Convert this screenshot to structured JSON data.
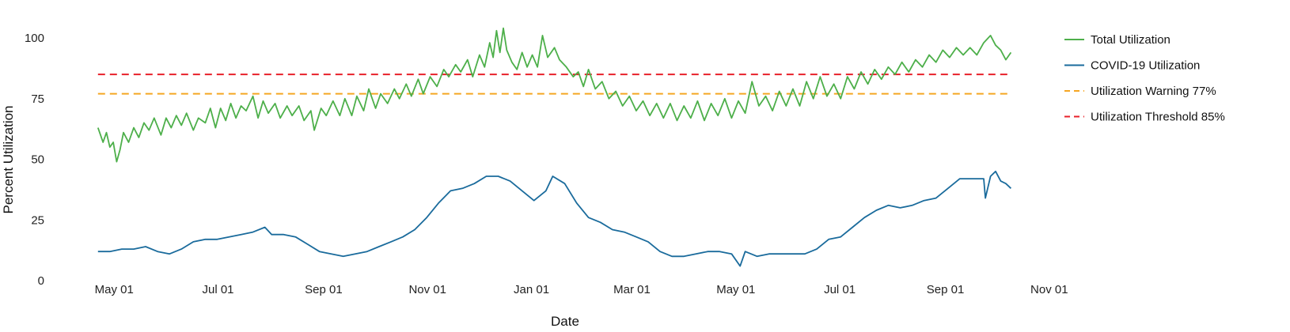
{
  "chart_data": {
    "type": "line",
    "xlabel": "Date",
    "ylabel": "Percent Utilization",
    "ylim": [
      0,
      100
    ],
    "y_ticks": [
      0,
      25,
      50,
      75,
      100
    ],
    "x_range": [
      "2020-04-23",
      "2021-10-20"
    ],
    "x_ticks": [
      {
        "date": "2020-05-01",
        "label": "May 01"
      },
      {
        "date": "2020-07-01",
        "label": "Jul 01"
      },
      {
        "date": "2020-09-01",
        "label": "Sep 01"
      },
      {
        "date": "2020-11-01",
        "label": "Nov 01"
      },
      {
        "date": "2021-01-01",
        "label": "Jan 01"
      },
      {
        "date": "2021-03-01",
        "label": "Mar 01"
      },
      {
        "date": "2021-05-01",
        "label": "May 01"
      },
      {
        "date": "2021-07-01",
        "label": "Jul 01"
      },
      {
        "date": "2021-09-01",
        "label": "Sep 01"
      },
      {
        "date": "2021-11-01",
        "label": "Nov 01"
      }
    ],
    "grid": false,
    "legend_position": "right",
    "series": [
      {
        "name": "Total Utilization",
        "color": "#4daf4a",
        "style": "solid",
        "points": [
          [
            "2020-04-28",
            63
          ],
          [
            "2020-05-01",
            57
          ],
          [
            "2020-05-03",
            61
          ],
          [
            "2020-05-05",
            55
          ],
          [
            "2020-05-07",
            57
          ],
          [
            "2020-05-09",
            49
          ],
          [
            "2020-05-11",
            54
          ],
          [
            "2020-05-13",
            61
          ],
          [
            "2020-05-16",
            57
          ],
          [
            "2020-05-19",
            63
          ],
          [
            "2020-05-22",
            59
          ],
          [
            "2020-05-25",
            65
          ],
          [
            "2020-05-28",
            62
          ],
          [
            "2020-05-31",
            67
          ],
          [
            "2020-06-04",
            60
          ],
          [
            "2020-06-07",
            67
          ],
          [
            "2020-06-10",
            63
          ],
          [
            "2020-06-13",
            68
          ],
          [
            "2020-06-16",
            64
          ],
          [
            "2020-06-19",
            69
          ],
          [
            "2020-06-23",
            62
          ],
          [
            "2020-06-26",
            67
          ],
          [
            "2020-06-30",
            65
          ],
          [
            "2020-07-03",
            71
          ],
          [
            "2020-07-06",
            63
          ],
          [
            "2020-07-09",
            71
          ],
          [
            "2020-07-12",
            66
          ],
          [
            "2020-07-15",
            73
          ],
          [
            "2020-07-18",
            67
          ],
          [
            "2020-07-21",
            72
          ],
          [
            "2020-07-24",
            70
          ],
          [
            "2020-07-28",
            76
          ],
          [
            "2020-07-31",
            67
          ],
          [
            "2020-08-03",
            74
          ],
          [
            "2020-08-06",
            69
          ],
          [
            "2020-08-10",
            73
          ],
          [
            "2020-08-13",
            67
          ],
          [
            "2020-08-17",
            72
          ],
          [
            "2020-08-20",
            68
          ],
          [
            "2020-08-24",
            72
          ],
          [
            "2020-08-27",
            66
          ],
          [
            "2020-08-31",
            70
          ],
          [
            "2020-09-02",
            62
          ],
          [
            "2020-09-06",
            71
          ],
          [
            "2020-09-09",
            68
          ],
          [
            "2020-09-13",
            74
          ],
          [
            "2020-09-17",
            68
          ],
          [
            "2020-09-20",
            75
          ],
          [
            "2020-09-24",
            68
          ],
          [
            "2020-09-27",
            76
          ],
          [
            "2020-10-01",
            70
          ],
          [
            "2020-10-04",
            79
          ],
          [
            "2020-10-08",
            71
          ],
          [
            "2020-10-11",
            77
          ],
          [
            "2020-10-15",
            73
          ],
          [
            "2020-10-19",
            79
          ],
          [
            "2020-10-22",
            75
          ],
          [
            "2020-10-26",
            81
          ],
          [
            "2020-10-29",
            76
          ],
          [
            "2020-11-02",
            83
          ],
          [
            "2020-11-05",
            77
          ],
          [
            "2020-11-09",
            84
          ],
          [
            "2020-11-13",
            80
          ],
          [
            "2020-11-17",
            87
          ],
          [
            "2020-11-20",
            84
          ],
          [
            "2020-11-24",
            89
          ],
          [
            "2020-11-27",
            86
          ],
          [
            "2020-12-01",
            91
          ],
          [
            "2020-12-04",
            84
          ],
          [
            "2020-12-08",
            93
          ],
          [
            "2020-12-11",
            88
          ],
          [
            "2020-12-14",
            98
          ],
          [
            "2020-12-16",
            92
          ],
          [
            "2020-12-18",
            103
          ],
          [
            "2020-12-20",
            94
          ],
          [
            "2020-12-22",
            104
          ],
          [
            "2020-12-24",
            95
          ],
          [
            "2020-12-27",
            90
          ],
          [
            "2020-12-30",
            87
          ],
          [
            "2021-01-02",
            94
          ],
          [
            "2021-01-05",
            88
          ],
          [
            "2021-01-08",
            93
          ],
          [
            "2021-01-11",
            88
          ],
          [
            "2021-01-14",
            101
          ],
          [
            "2021-01-17",
            92
          ],
          [
            "2021-01-21",
            96
          ],
          [
            "2021-01-24",
            91
          ],
          [
            "2021-01-28",
            88
          ],
          [
            "2021-02-01",
            84
          ],
          [
            "2021-02-04",
            86
          ],
          [
            "2021-02-07",
            80
          ],
          [
            "2021-02-10",
            87
          ],
          [
            "2021-02-14",
            79
          ],
          [
            "2021-02-18",
            82
          ],
          [
            "2021-02-22",
            75
          ],
          [
            "2021-02-26",
            78
          ],
          [
            "2021-03-02",
            72
          ],
          [
            "2021-03-06",
            76
          ],
          [
            "2021-03-10",
            70
          ],
          [
            "2021-03-14",
            74
          ],
          [
            "2021-03-18",
            68
          ],
          [
            "2021-03-22",
            73
          ],
          [
            "2021-03-26",
            67
          ],
          [
            "2021-03-30",
            73
          ],
          [
            "2021-04-03",
            66
          ],
          [
            "2021-04-07",
            72
          ],
          [
            "2021-04-11",
            67
          ],
          [
            "2021-04-15",
            74
          ],
          [
            "2021-04-19",
            66
          ],
          [
            "2021-04-23",
            73
          ],
          [
            "2021-04-27",
            68
          ],
          [
            "2021-05-01",
            75
          ],
          [
            "2021-05-05",
            67
          ],
          [
            "2021-05-09",
            74
          ],
          [
            "2021-05-13",
            69
          ],
          [
            "2021-05-17",
            82
          ],
          [
            "2021-05-21",
            72
          ],
          [
            "2021-05-25",
            76
          ],
          [
            "2021-05-29",
            70
          ],
          [
            "2021-06-02",
            78
          ],
          [
            "2021-06-06",
            72
          ],
          [
            "2021-06-10",
            79
          ],
          [
            "2021-06-14",
            72
          ],
          [
            "2021-06-18",
            82
          ],
          [
            "2021-06-22",
            75
          ],
          [
            "2021-06-26",
            84
          ],
          [
            "2021-06-30",
            76
          ],
          [
            "2021-07-04",
            81
          ],
          [
            "2021-07-08",
            75
          ],
          [
            "2021-07-12",
            84
          ],
          [
            "2021-07-16",
            79
          ],
          [
            "2021-07-20",
            86
          ],
          [
            "2021-07-24",
            81
          ],
          [
            "2021-07-28",
            87
          ],
          [
            "2021-08-01",
            83
          ],
          [
            "2021-08-05",
            88
          ],
          [
            "2021-08-09",
            85
          ],
          [
            "2021-08-13",
            90
          ],
          [
            "2021-08-17",
            86
          ],
          [
            "2021-08-21",
            91
          ],
          [
            "2021-08-25",
            88
          ],
          [
            "2021-08-29",
            93
          ],
          [
            "2021-09-02",
            90
          ],
          [
            "2021-09-06",
            95
          ],
          [
            "2021-09-10",
            92
          ],
          [
            "2021-09-14",
            96
          ],
          [
            "2021-09-18",
            93
          ],
          [
            "2021-09-22",
            96
          ],
          [
            "2021-09-26",
            93
          ],
          [
            "2021-09-30",
            98
          ],
          [
            "2021-10-04",
            101
          ],
          [
            "2021-10-07",
            97
          ],
          [
            "2021-10-10",
            95
          ],
          [
            "2021-10-13",
            91
          ],
          [
            "2021-10-16",
            94
          ]
        ]
      },
      {
        "name": "COVID-19 Utilization",
        "color": "#1a6b9c",
        "style": "solid",
        "points": [
          [
            "2020-04-28",
            12
          ],
          [
            "2020-05-05",
            12
          ],
          [
            "2020-05-12",
            13
          ],
          [
            "2020-05-19",
            13
          ],
          [
            "2020-05-26",
            14
          ],
          [
            "2020-06-02",
            12
          ],
          [
            "2020-06-09",
            11
          ],
          [
            "2020-06-16",
            13
          ],
          [
            "2020-06-23",
            16
          ],
          [
            "2020-06-30",
            17
          ],
          [
            "2020-07-07",
            17
          ],
          [
            "2020-07-14",
            18
          ],
          [
            "2020-07-21",
            19
          ],
          [
            "2020-07-28",
            20
          ],
          [
            "2020-08-04",
            22
          ],
          [
            "2020-08-08",
            19
          ],
          [
            "2020-08-15",
            19
          ],
          [
            "2020-08-22",
            18
          ],
          [
            "2020-08-29",
            15
          ],
          [
            "2020-09-05",
            12
          ],
          [
            "2020-09-12",
            11
          ],
          [
            "2020-09-19",
            10
          ],
          [
            "2020-09-26",
            11
          ],
          [
            "2020-10-03",
            12
          ],
          [
            "2020-10-10",
            14
          ],
          [
            "2020-10-17",
            16
          ],
          [
            "2020-10-24",
            18
          ],
          [
            "2020-10-31",
            21
          ],
          [
            "2020-11-07",
            26
          ],
          [
            "2020-11-14",
            32
          ],
          [
            "2020-11-21",
            37
          ],
          [
            "2020-11-28",
            38
          ],
          [
            "2020-12-05",
            40
          ],
          [
            "2020-12-12",
            43
          ],
          [
            "2020-12-19",
            43
          ],
          [
            "2020-12-26",
            41
          ],
          [
            "2021-01-02",
            37
          ],
          [
            "2021-01-09",
            33
          ],
          [
            "2021-01-16",
            37
          ],
          [
            "2021-01-20",
            43
          ],
          [
            "2021-01-27",
            40
          ],
          [
            "2021-02-03",
            32
          ],
          [
            "2021-02-10",
            26
          ],
          [
            "2021-02-17",
            24
          ],
          [
            "2021-02-24",
            21
          ],
          [
            "2021-03-03",
            20
          ],
          [
            "2021-03-10",
            18
          ],
          [
            "2021-03-17",
            16
          ],
          [
            "2021-03-24",
            12
          ],
          [
            "2021-03-31",
            10
          ],
          [
            "2021-04-07",
            10
          ],
          [
            "2021-04-14",
            11
          ],
          [
            "2021-04-21",
            12
          ],
          [
            "2021-04-28",
            12
          ],
          [
            "2021-05-05",
            11
          ],
          [
            "2021-05-10",
            6
          ],
          [
            "2021-05-13",
            12
          ],
          [
            "2021-05-20",
            10
          ],
          [
            "2021-05-27",
            11
          ],
          [
            "2021-06-03",
            11
          ],
          [
            "2021-06-10",
            11
          ],
          [
            "2021-06-17",
            11
          ],
          [
            "2021-06-24",
            13
          ],
          [
            "2021-07-01",
            17
          ],
          [
            "2021-07-08",
            18
          ],
          [
            "2021-07-15",
            22
          ],
          [
            "2021-07-22",
            26
          ],
          [
            "2021-07-29",
            29
          ],
          [
            "2021-08-05",
            31
          ],
          [
            "2021-08-12",
            30
          ],
          [
            "2021-08-19",
            31
          ],
          [
            "2021-08-26",
            33
          ],
          [
            "2021-09-02",
            34
          ],
          [
            "2021-09-09",
            38
          ],
          [
            "2021-09-16",
            42
          ],
          [
            "2021-09-23",
            42
          ],
          [
            "2021-09-30",
            42
          ],
          [
            "2021-10-01",
            34
          ],
          [
            "2021-10-04",
            43
          ],
          [
            "2021-10-07",
            45
          ],
          [
            "2021-10-10",
            41
          ],
          [
            "2021-10-13",
            40
          ],
          [
            "2021-10-16",
            38
          ]
        ]
      },
      {
        "name": "Utilization Warning 77%",
        "color": "#f5a623",
        "style": "dashed",
        "points": [
          [
            "2020-04-28",
            77
          ],
          [
            "2021-10-16",
            77
          ]
        ]
      },
      {
        "name": "Utilization Threshold 85%",
        "color": "#e8202a",
        "style": "dashed",
        "points": [
          [
            "2020-04-28",
            85
          ],
          [
            "2021-10-16",
            85
          ]
        ]
      }
    ]
  }
}
